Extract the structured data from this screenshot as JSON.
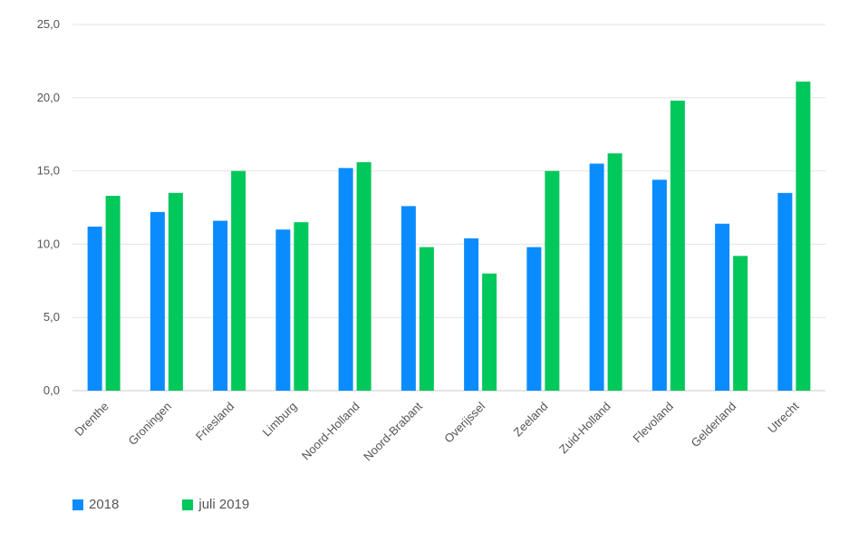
{
  "chart_data": {
    "type": "bar",
    "title": "",
    "xlabel": "",
    "ylabel": "",
    "ylim": [
      0,
      25
    ],
    "yticks": [
      "0,0",
      "5,0",
      "10,0",
      "15,0",
      "20,0",
      "25,0"
    ],
    "grid": true,
    "legend_position": "bottom-left",
    "categories": [
      "Drenthe",
      "Groningen",
      "Friesland",
      "Limburg",
      "Noord-Holland",
      "Noord-Brabant",
      "Overijssel",
      "Zeeland",
      "Zuid-Holland",
      "Flevoland",
      "Gelderland",
      "Utrecht"
    ],
    "series": [
      {
        "name": "2018",
        "color": "#0a8cff",
        "values": [
          11.2,
          12.2,
          11.6,
          11.0,
          15.2,
          12.6,
          10.4,
          9.8,
          15.5,
          14.4,
          11.4,
          13.5
        ]
      },
      {
        "name": "juli 2019",
        "color": "#00c85a",
        "values": [
          13.3,
          13.5,
          15.0,
          11.5,
          15.6,
          9.8,
          8.0,
          15.0,
          16.2,
          19.8,
          9.2,
          21.1
        ]
      }
    ]
  }
}
